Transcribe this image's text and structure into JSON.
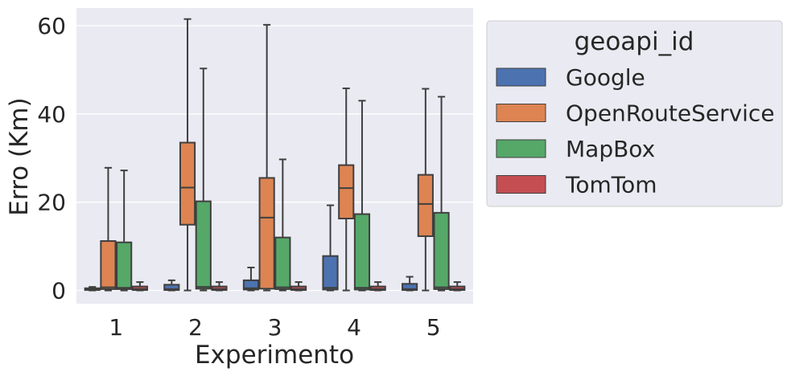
{
  "chart_data": {
    "type": "box",
    "xlabel": "Experimento",
    "ylabel": "Erro (Km)",
    "categories": [
      "1",
      "2",
      "3",
      "4",
      "5"
    ],
    "ylim": [
      -3,
      64
    ],
    "yticks": [
      0,
      20,
      40,
      60
    ],
    "grid": true,
    "legend": {
      "title": "geoapi_id",
      "placement": "outside-right"
    },
    "series": [
      {
        "name": "Google",
        "color": "#4c72b0",
        "boxes": [
          {
            "whisker_low": 0,
            "q1": 0.1,
            "median": 0.2,
            "q3": 0.5,
            "whisker_high": 0.8
          },
          {
            "whisker_low": 0,
            "q1": 0.1,
            "median": 0.3,
            "q3": 1.3,
            "whisker_high": 2.3
          },
          {
            "whisker_low": 0,
            "q1": 0.2,
            "median": 0.5,
            "q3": 2.3,
            "whisker_high": 5.2
          },
          {
            "whisker_low": 0,
            "q1": 0.2,
            "median": 0.6,
            "q3": 7.8,
            "whisker_high": 19.3
          },
          {
            "whisker_low": 0,
            "q1": 0.1,
            "median": 0.3,
            "q3": 1.5,
            "whisker_high": 3.1
          }
        ]
      },
      {
        "name": "OpenRouteService",
        "color": "#dd8452",
        "boxes": [
          {
            "whisker_low": 0,
            "q1": 0.3,
            "median": 0.7,
            "q3": 11.2,
            "whisker_high": 27.8
          },
          {
            "whisker_low": 0,
            "q1": 14.9,
            "median": 23.3,
            "q3": 33.5,
            "whisker_high": 61.5
          },
          {
            "whisker_low": 0,
            "q1": 0.4,
            "median": 16.5,
            "q3": 25.5,
            "whisker_high": 60.2
          },
          {
            "whisker_low": 0,
            "q1": 16.3,
            "median": 23.2,
            "q3": 28.4,
            "whisker_high": 45.8
          },
          {
            "whisker_low": 0,
            "q1": 12.3,
            "median": 19.6,
            "q3": 26.2,
            "whisker_high": 45.7
          }
        ]
      },
      {
        "name": "MapBox",
        "color": "#55a868",
        "boxes": [
          {
            "whisker_low": 0,
            "q1": 0.3,
            "median": 0.6,
            "q3": 10.9,
            "whisker_high": 27.2
          },
          {
            "whisker_low": 0,
            "q1": 0.4,
            "median": 0.8,
            "q3": 20.2,
            "whisker_high": 50.3
          },
          {
            "whisker_low": 0,
            "q1": 0.3,
            "median": 0.7,
            "q3": 12.0,
            "whisker_high": 29.7
          },
          {
            "whisker_low": 0,
            "q1": 0.2,
            "median": 0.6,
            "q3": 17.3,
            "whisker_high": 43.0
          },
          {
            "whisker_low": 0,
            "q1": 0.3,
            "median": 0.7,
            "q3": 17.6,
            "whisker_high": 43.9
          }
        ]
      },
      {
        "name": "TomTom",
        "color": "#c44e52",
        "boxes": [
          {
            "whisker_low": 0,
            "q1": 0.1,
            "median": 0.3,
            "q3": 0.9,
            "whisker_high": 1.9
          },
          {
            "whisker_low": 0,
            "q1": 0.1,
            "median": 0.3,
            "q3": 0.9,
            "whisker_high": 1.9
          },
          {
            "whisker_low": 0,
            "q1": 0.1,
            "median": 0.3,
            "q3": 0.9,
            "whisker_high": 1.9
          },
          {
            "whisker_low": 0,
            "q1": 0.1,
            "median": 0.3,
            "q3": 0.9,
            "whisker_high": 1.9
          },
          {
            "whisker_low": 0,
            "q1": 0.1,
            "median": 0.3,
            "q3": 0.9,
            "whisker_high": 1.9
          }
        ]
      }
    ]
  },
  "colors": {
    "plot_background": "#eaeaf2",
    "grid": "#ffffff",
    "box_edge": "#3f3f3f"
  }
}
